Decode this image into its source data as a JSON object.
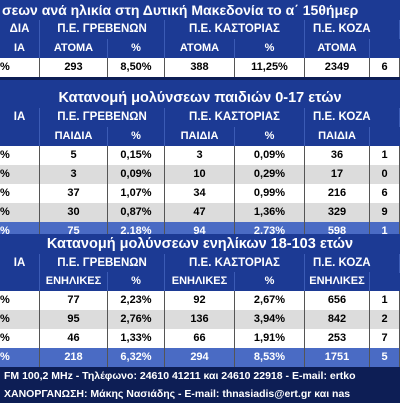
{
  "title_top": "σεων ανά ηλικία στη Δυτική Μακεδονία το α΄ 15θήμερ",
  "section1": {
    "hdr1": [
      "ΔΙΑ",
      "Π.Ε. ΓΡΕΒΕΝΩΝ",
      "Π.Ε. ΚΑΣΤΟΡΙΑΣ",
      "Π.Ε. ΚΟΖΑ"
    ],
    "hdr2": [
      "ΙΑ",
      "ΑΤΟΜΑ",
      "%",
      "ΑΤΟΜΑ",
      "%",
      "ΑΤΟΜΑ"
    ],
    "row": [
      "%",
      "293",
      "8,50%",
      "388",
      "11,25%",
      "2349",
      "6"
    ]
  },
  "section2": {
    "title": "Κατανομή μολύνσεων παιδιών 0-17 ετών",
    "hdr1": [
      "ΙΑ",
      "Π.Ε. ΓΡΕΒΕΝΩΝ",
      "Π.Ε. ΚΑΣΤΟΡΙΑΣ",
      "Π.Ε. ΚΟΖΑ"
    ],
    "hdr2": [
      "",
      "ΠΑΙΔΙΑ",
      "%",
      "ΠΑΙΔΙΑ",
      "%",
      "ΠΑΙΔΙΑ"
    ],
    "rows": [
      [
        "%",
        "5",
        "0,15%",
        "3",
        "0,09%",
        "36",
        "1"
      ],
      [
        "%",
        "3",
        "0,09%",
        "10",
        "0,29%",
        "17",
        "0"
      ],
      [
        "%",
        "37",
        "1,07%",
        "34",
        "0,99%",
        "216",
        "6"
      ],
      [
        "%",
        "30",
        "0,87%",
        "47",
        "1,36%",
        "329",
        "9"
      ],
      [
        "%",
        "75",
        "2,18%",
        "94",
        "2,73%",
        "598",
        "1"
      ]
    ]
  },
  "section3": {
    "title": "Κατανομή μολύνσεων ενηλίκων 18-103 ετών",
    "hdr1": [
      "ΙΑ",
      "Π.Ε. ΓΡΕΒΕΝΩΝ",
      "Π.Ε. ΚΑΣΤΟΡΙΑΣ",
      "Π.Ε. ΚΟΖΑ"
    ],
    "hdr2": [
      "",
      "ΕΝΗΛΙΚΕΣ",
      "%",
      "ΕΝΗΛΙΚΕΣ",
      "%",
      "ΕΝΗΛΙΚΕΣ"
    ],
    "rows": [
      [
        "%",
        "77",
        "2,23%",
        "92",
        "2,67%",
        "656",
        "1"
      ],
      [
        "%",
        "95",
        "2,76%",
        "136",
        "3,94%",
        "842",
        "2"
      ],
      [
        "%",
        "46",
        "1,33%",
        "66",
        "1,91%",
        "253",
        "7"
      ],
      [
        "%",
        "218",
        "6,32%",
        "294",
        "8,53%",
        "1751",
        "5"
      ]
    ]
  },
  "footer": {
    "line1": "FM 100,2 MHz - Τηλέφωνο: 24610 41211 και 24610 22918 - E-mail: ertko",
    "line2": "ΧΑΝΟΡΓΑΝΩΣΗ: Μάκης Νασιάδης - E-mail: thnasiadis@ert.gr και nas"
  }
}
